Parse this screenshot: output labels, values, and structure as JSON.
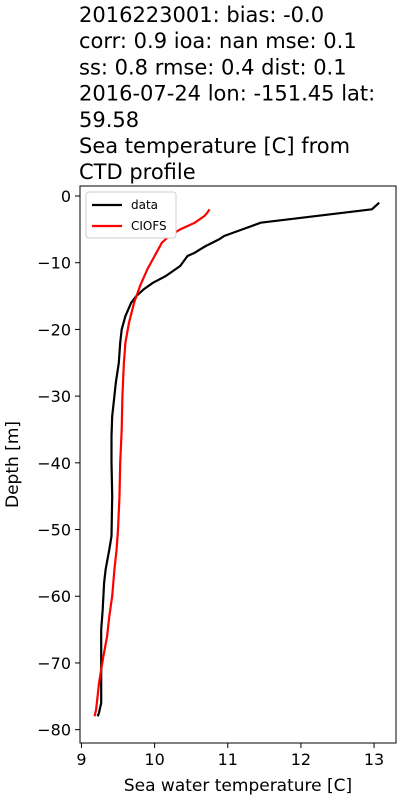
{
  "chart_data": {
    "type": "line",
    "title_lines": [
      "2016223001: bias: -0.0",
      "corr: 0.9  ioa: nan  mse: 0.1",
      "ss: 0.8  rmse: 0.4  dist: 0.1",
      "2016-07-24 lon: -151.45 lat:",
      "59.58",
      "Sea temperature [C] from",
      "CTD profile"
    ],
    "xlabel": "Sea water temperature [C]",
    "ylabel": "Depth [m]",
    "xlim": [
      8.98,
      13.3
    ],
    "ylim": [
      -82,
      1.5
    ],
    "xticks": [
      9,
      10,
      11,
      12,
      13
    ],
    "yticks": [
      0,
      -10,
      -20,
      -30,
      -40,
      -50,
      -60,
      -70,
      -80
    ],
    "legend_position": "top-left",
    "grid": false,
    "series": [
      {
        "name": "data",
        "color": "#000000",
        "x": [
          13.07,
          12.97,
          11.45,
          11.2,
          10.95,
          10.88,
          10.7,
          10.62,
          10.55,
          10.45,
          10.35,
          10.15,
          9.98,
          9.85,
          9.75,
          9.68,
          9.6,
          9.55,
          9.53,
          9.51,
          9.47,
          9.45,
          9.42,
          9.41,
          9.41,
          9.42,
          9.41,
          9.38,
          9.33,
          9.31,
          9.29,
          9.27,
          9.27,
          9.27,
          9.25,
          9.24,
          9.22
        ],
        "y": [
          -1,
          -2,
          -4,
          -5,
          -6,
          -6.5,
          -7.5,
          -8,
          -8.5,
          -9,
          -10.5,
          -12,
          -13,
          -14,
          -15,
          -16,
          -18,
          -20,
          -22,
          -25,
          -28,
          -30,
          -33,
          -36,
          -40,
          -45,
          -51,
          -53,
          -56,
          -58,
          -62,
          -65,
          -70,
          -76,
          -77,
          -77.5,
          -78
        ]
      },
      {
        "name": "CIOFS",
        "color": "#ff0000",
        "x": [
          10.75,
          10.72,
          10.68,
          10.55,
          10.35,
          10.2,
          10.1,
          10.0,
          9.9,
          9.8,
          9.72,
          9.65,
          9.6,
          9.58,
          9.56,
          9.55,
          9.53,
          9.52,
          9.5,
          9.48,
          9.45,
          9.42,
          9.38,
          9.35,
          9.3,
          9.27,
          9.24,
          9.22,
          9.2,
          9.18
        ],
        "y": [
          -2,
          -2.5,
          -3,
          -4,
          -5,
          -6,
          -7,
          -9,
          -11,
          -13.5,
          -16,
          -19,
          -22,
          -25,
          -30,
          -35,
          -40,
          -45,
          -50,
          -53,
          -56,
          -60,
          -63,
          -66,
          -69,
          -71,
          -73,
          -75,
          -77,
          -78
        ]
      }
    ]
  }
}
